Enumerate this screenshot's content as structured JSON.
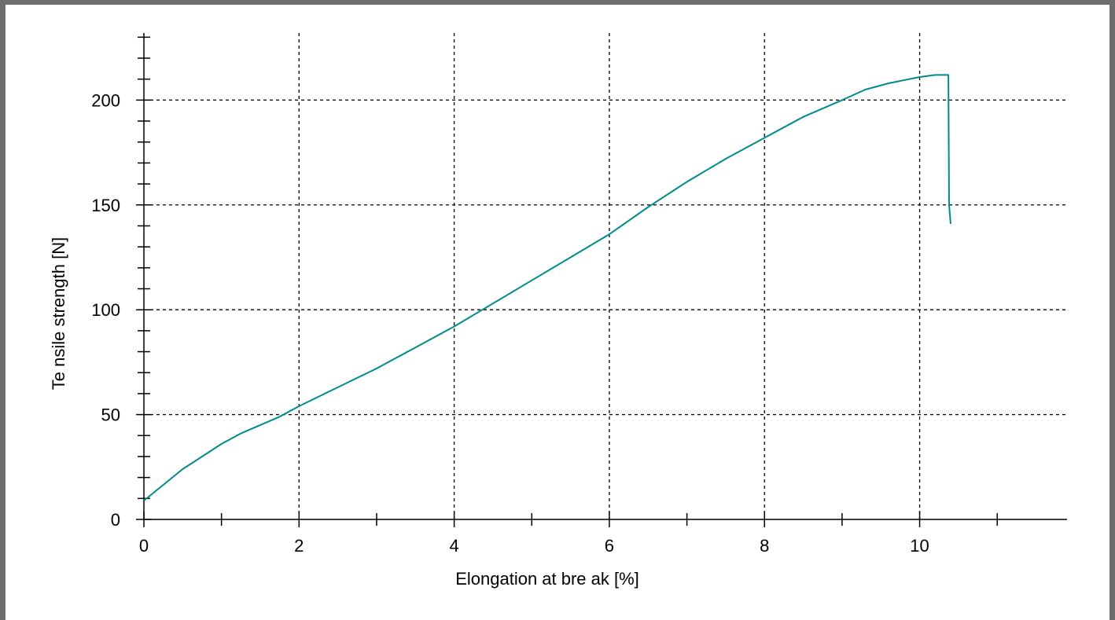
{
  "chart_data": {
    "type": "line",
    "title": "",
    "xlabel": "Elongation at bre ak [%]",
    "ylabel": "Te nsile strength [N]",
    "xlim": [
      0,
      11.9
    ],
    "ylim": [
      0,
      232
    ],
    "x_ticks": [
      0,
      2,
      4,
      6,
      8,
      10
    ],
    "x_tick_labels": [
      "0",
      "2",
      "4",
      "6",
      "8",
      "10"
    ],
    "x_minor_ticks": [
      1,
      3,
      5,
      7,
      9,
      11
    ],
    "y_ticks": [
      0,
      50,
      100,
      150,
      200
    ],
    "y_tick_labels": [
      "0",
      "50",
      "100",
      "150",
      "200"
    ],
    "y_minor_step": 10,
    "grid": true,
    "legend": "none",
    "series": [
      {
        "color": "#008b8b",
        "x": [
          0,
          0.1,
          0.3,
          0.5,
          0.75,
          1.0,
          1.25,
          1.5,
          1.75,
          2.0,
          2.5,
          3.0,
          3.5,
          4.0,
          4.5,
          5.0,
          5.5,
          6.0,
          6.5,
          7.0,
          7.5,
          8.0,
          8.5,
          9.0,
          9.3,
          9.6,
          10.0,
          10.2,
          10.35,
          10.37,
          10.38,
          10.4
        ],
        "y": [
          9,
          12,
          18,
          24,
          30,
          36,
          41,
          45,
          49,
          54,
          63,
          72,
          82,
          92,
          103,
          114,
          125,
          136,
          149,
          161,
          172,
          182,
          192,
          200,
          205,
          208,
          211,
          212,
          212,
          212,
          150,
          141
        ]
      }
    ]
  }
}
